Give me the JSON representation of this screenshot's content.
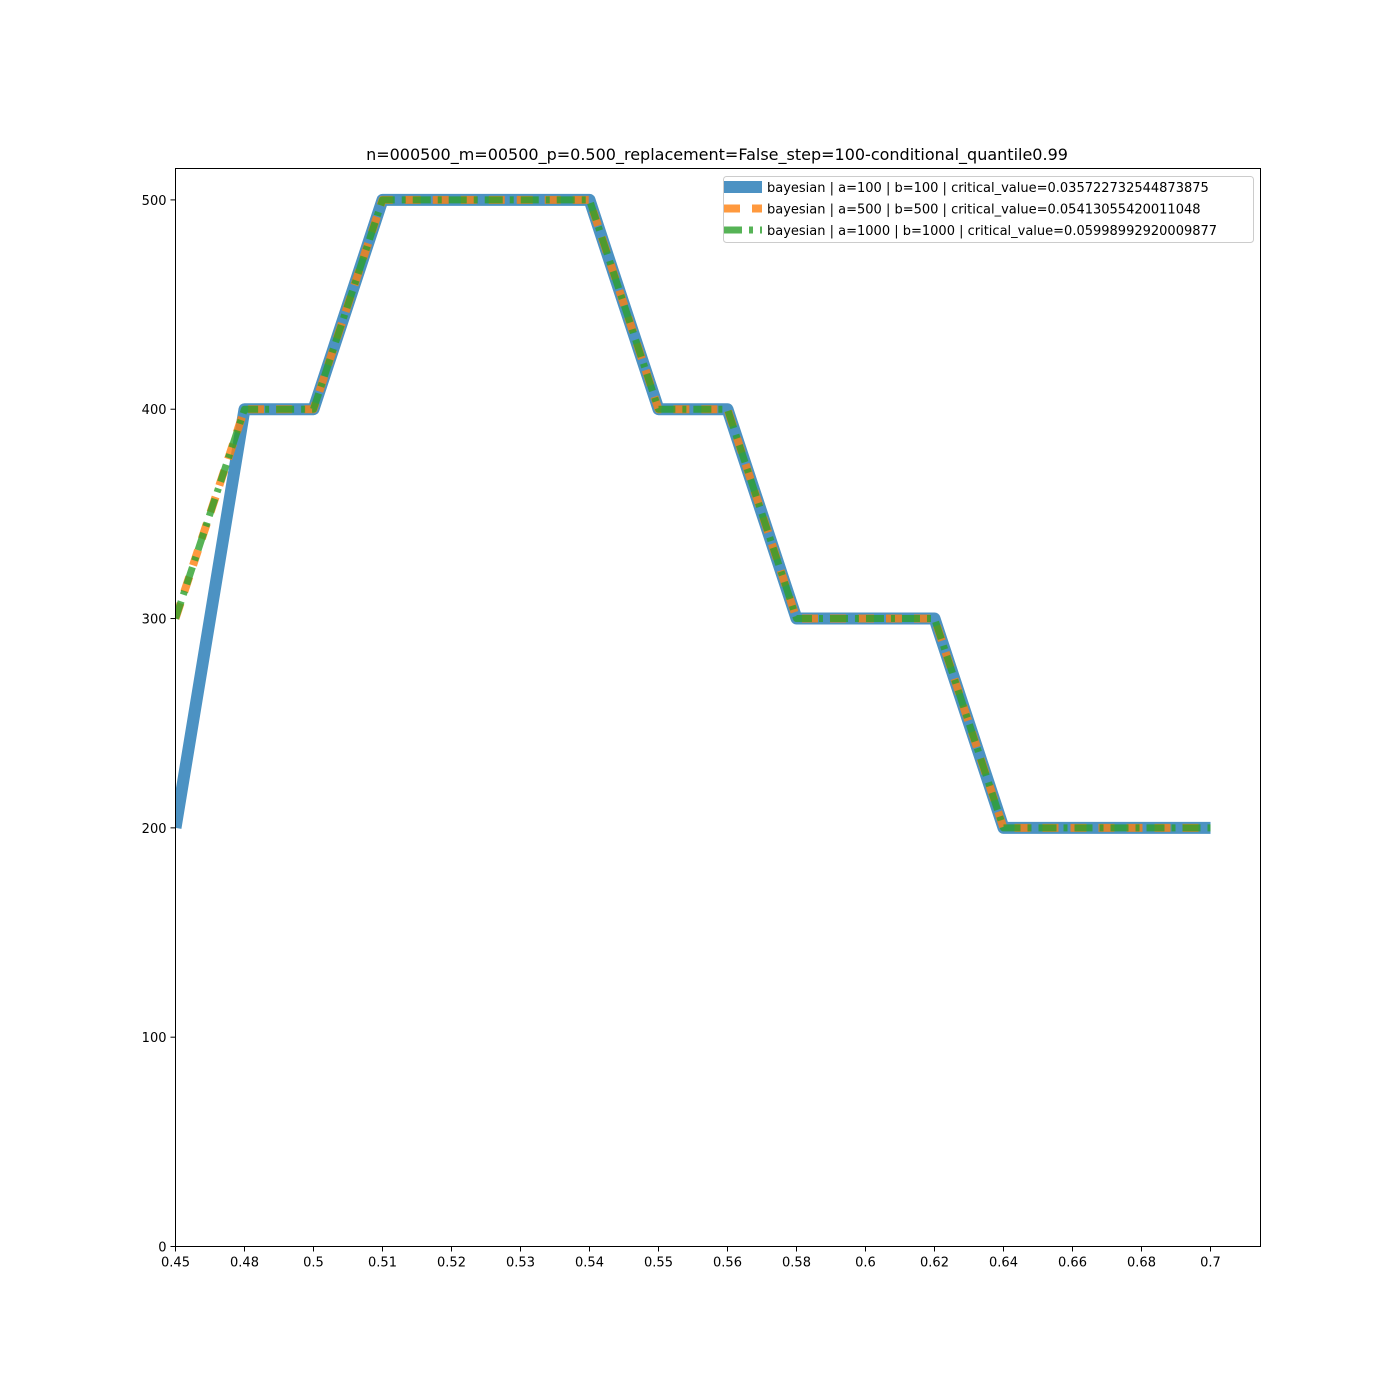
{
  "chart_data": {
    "type": "line",
    "title": "n=000500_m=00500_p=0.500_replacement=False_step=100-conditional_quantile0.99",
    "xlabel": "",
    "ylabel": "",
    "ylim": [
      0,
      515
    ],
    "yticks": [
      0,
      100,
      200,
      300,
      400,
      500
    ],
    "x_tick_labels": [
      "0.45",
      "0.48",
      "0.5",
      "0.51",
      "0.52",
      "0.53",
      "0.54",
      "0.55",
      "0.56",
      "0.58",
      "0.6",
      "0.62",
      "0.64",
      "0.66",
      "0.68",
      "0.7"
    ],
    "grid": false,
    "legend_position": "upper right",
    "series": [
      {
        "name": "bayesian | a=100 | b=100 | critical_value=0.035722732544873875",
        "color": "#1f77b4",
        "style": "solid",
        "values": [
          200,
          400,
          400,
          500,
          500,
          500,
          500,
          400,
          400,
          300,
          300,
          300,
          200,
          200,
          200,
          200
        ]
      },
      {
        "name": "bayesian | a=500 | b=500 | critical_value=0.05413055420011048",
        "color": "#ff7f0e",
        "style": "dashed",
        "values": [
          300,
          400,
          400,
          500,
          500,
          500,
          500,
          400,
          400,
          300,
          300,
          300,
          200,
          200,
          200,
          200
        ]
      },
      {
        "name": "bayesian | a=1000 | b=1000 | critical_value=0.05998992920009877",
        "color": "#2ca02c",
        "style": "dashdot",
        "values": [
          300,
          400,
          400,
          500,
          500,
          500,
          500,
          400,
          400,
          300,
          300,
          300,
          200,
          200,
          200,
          200
        ]
      }
    ]
  }
}
